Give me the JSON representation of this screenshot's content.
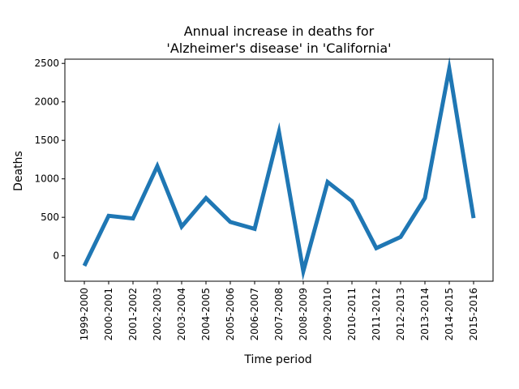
{
  "chart_data": {
    "type": "line",
    "title_line1": "Annual increase in deaths for",
    "title_line2": "'Alzheimer's disease' in 'California'",
    "xlabel": "Time period",
    "ylabel": "Deaths",
    "categories": [
      "1999-2000",
      "2000-2001",
      "2001-2002",
      "2002-2003",
      "2003-2004",
      "2004-2005",
      "2005-2006",
      "2006-2007",
      "2007-2008",
      "2008-2009",
      "2009-2010",
      "2010-2011",
      "2011-2012",
      "2012-2013",
      "2013-2014",
      "2014-2015",
      "2015-2016"
    ],
    "values": [
      -130,
      520,
      485,
      1165,
      380,
      750,
      440,
      350,
      1610,
      -200,
      960,
      710,
      100,
      245,
      750,
      2430,
      490
    ],
    "yticks": [
      0,
      500,
      1000,
      1500,
      2000,
      2500
    ],
    "ylim": [
      -330,
      2555
    ],
    "grid": false,
    "legend": "none",
    "line_color": "#1f77b4"
  }
}
